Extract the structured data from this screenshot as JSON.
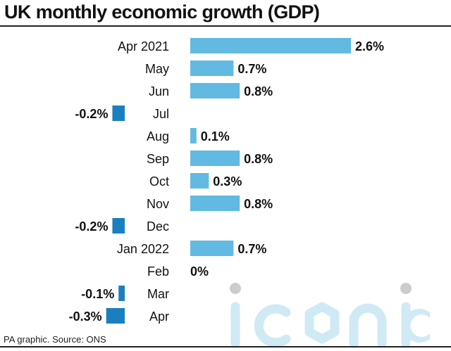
{
  "title": "UK monthly economic growth (GDP)",
  "source": "PA graphic. Source: ONS",
  "watermark": "iconic",
  "colors": {
    "positive": "#62b9e2",
    "negative": "#1a7fbf",
    "text": "#111111",
    "watermark": "#cfeaf5"
  },
  "chart_data": {
    "type": "bar",
    "orientation": "horizontal",
    "categories": [
      "Apr 2021",
      "May",
      "Jun",
      "Jul",
      "Aug",
      "Sep",
      "Oct",
      "Nov",
      "Dec",
      "Jan 2022",
      "Feb",
      "Mar",
      "Apr"
    ],
    "values": [
      2.6,
      0.7,
      0.8,
      -0.2,
      0.1,
      0.8,
      0.3,
      0.8,
      -0.2,
      0.7,
      0,
      -0.1,
      -0.3
    ],
    "labels": [
      "2.6%",
      "0.7%",
      "0.8%",
      "-0.2%",
      "0.1%",
      "0.8%",
      "0.3%",
      "0.8%",
      "-0.2%",
      "0.7%",
      "0%",
      "-0.1%",
      "-0.3%"
    ],
    "unit": "%",
    "title": "UK monthly economic growth (GDP)",
    "xlabel": "",
    "ylabel": "",
    "grid": false,
    "legend": "none"
  }
}
